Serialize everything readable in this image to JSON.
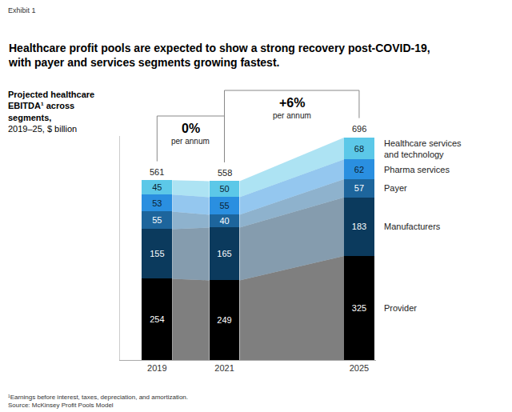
{
  "chart_data": {
    "type": "bar",
    "stacked": true,
    "data_labels": true,
    "tick_labels": "x",
    "grid": false,
    "header": "Exhibit 1",
    "title": "Healthcare profit pools are expected to show a strong recovery post-COVID-19, with payer and services segments growing fastest.",
    "y_label": "Projected healthcare EBITDA¹ across segments,",
    "y_label_unit": "2019–25, $ billion",
    "x": [
      2019,
      2021,
      2025
    ],
    "xlim": [
      2017.9,
      2025.5
    ],
    "xticks": [
      2019,
      2021,
      2025
    ],
    "ylim": [
      0,
      700
    ],
    "yticks": [],
    "series": [
      {
        "name": "Provider",
        "color": "#000000",
        "values": [
          254,
          249,
          325
        ]
      },
      {
        "name": "Manufacturers",
        "color": "#0b3a5d",
        "values": [
          155,
          165,
          183
        ]
      },
      {
        "name": "Payer",
        "color": "#1d659c",
        "values": [
          55,
          40,
          57
        ]
      },
      {
        "name": "Pharma services",
        "color": "#2a8fe0",
        "values": [
          53,
          55,
          62
        ]
      },
      {
        "name": "Healthcare services and technology",
        "color": "#5cc8e8",
        "values": [
          45,
          50,
          68
        ]
      }
    ],
    "totals": [
      561,
      558,
      696
    ],
    "growth": [
      {
        "from": 2019,
        "to": 2021,
        "label": "0%",
        "note": "per annum"
      },
      {
        "from": 2021,
        "to": 2025,
        "label": "+6%",
        "note": "per annum"
      }
    ],
    "footnotes": [
      "¹Earnings before interest, taxes, depreciation, and amortization.",
      "Source: McKinsey Profit Pools Model"
    ]
  }
}
